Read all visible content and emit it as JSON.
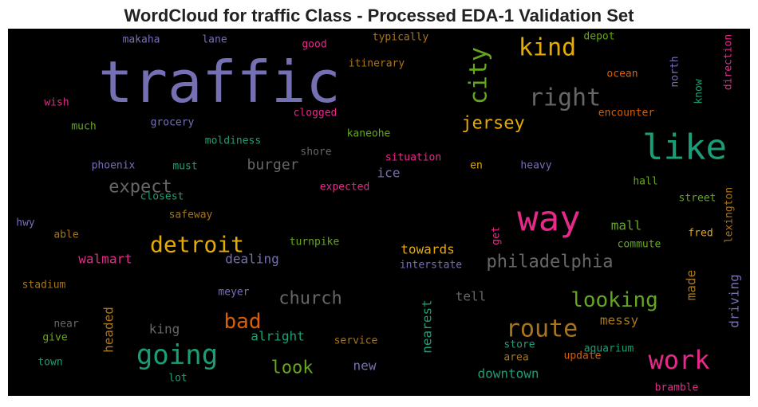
{
  "chart_data": {
    "type": "wordcloud",
    "title": "WordCloud for traffic Class - Processed EDA-1 Validation Set",
    "background": "#000000",
    "words": [
      {
        "text": "traffic",
        "color": "#7570b3"
      },
      {
        "text": "like",
        "color": "#1b9e77"
      },
      {
        "text": "way",
        "color": "#e7298a"
      },
      {
        "text": "kind",
        "color": "#e6ab02"
      },
      {
        "text": "right",
        "color": "#666666"
      },
      {
        "text": "city",
        "color": "#66a61e"
      },
      {
        "text": "jersey",
        "color": "#e6ab02"
      },
      {
        "text": "detroit",
        "color": "#e6ab02"
      },
      {
        "text": "going",
        "color": "#1b9e77"
      },
      {
        "text": "work",
        "color": "#e7298a"
      },
      {
        "text": "route",
        "color": "#a6761d"
      },
      {
        "text": "looking",
        "color": "#66a61e"
      },
      {
        "text": "philadelphia",
        "color": "#666666"
      },
      {
        "text": "church",
        "color": "#666666"
      },
      {
        "text": "bad",
        "color": "#d95f02"
      },
      {
        "text": "expect",
        "color": "#666666"
      },
      {
        "text": "burger",
        "color": "#666666"
      },
      {
        "text": "look",
        "color": "#66a61e"
      },
      {
        "text": "downtown",
        "color": "#1b9e77"
      },
      {
        "text": "towards",
        "color": "#e6ab02"
      },
      {
        "text": "walmart",
        "color": "#e7298a"
      },
      {
        "text": "dealing",
        "color": "#7570b3"
      },
      {
        "text": "mall",
        "color": "#66a61e"
      },
      {
        "text": "messy",
        "color": "#a6761d"
      },
      {
        "text": "alright",
        "color": "#1b9e77"
      },
      {
        "text": "king",
        "color": "#666666"
      },
      {
        "text": "headed",
        "color": "#a6761d"
      },
      {
        "text": "nearest",
        "color": "#1b9e77"
      },
      {
        "text": "made",
        "color": "#a6761d"
      },
      {
        "text": "driving",
        "color": "#7570b3"
      },
      {
        "text": "tell",
        "color": "#666666"
      },
      {
        "text": "new",
        "color": "#7570b3"
      },
      {
        "text": "ice",
        "color": "#7570b3"
      },
      {
        "text": "makaha",
        "color": "#7570b3"
      },
      {
        "text": "lane",
        "color": "#7570b3"
      },
      {
        "text": "good",
        "color": "#e7298a"
      },
      {
        "text": "typically",
        "color": "#a6761d"
      },
      {
        "text": "itinerary",
        "color": "#a6761d"
      },
      {
        "text": "depot",
        "color": "#66a61e"
      },
      {
        "text": "ocean",
        "color": "#d95f02"
      },
      {
        "text": "north",
        "color": "#7570b3"
      },
      {
        "text": "know",
        "color": "#1b9e77"
      },
      {
        "text": "direction",
        "color": "#e7298a"
      },
      {
        "text": "wish",
        "color": "#e7298a"
      },
      {
        "text": "much",
        "color": "#66a61e"
      },
      {
        "text": "grocery",
        "color": "#7570b3"
      },
      {
        "text": "clogged",
        "color": "#e7298a"
      },
      {
        "text": "encounter",
        "color": "#d95f02"
      },
      {
        "text": "kaneohe",
        "color": "#66a61e"
      },
      {
        "text": "moldiness",
        "color": "#1b9e77"
      },
      {
        "text": "shore",
        "color": "#666666"
      },
      {
        "text": "situation",
        "color": "#e7298a"
      },
      {
        "text": "en",
        "color": "#e6ab02"
      },
      {
        "text": "heavy",
        "color": "#7570b3"
      },
      {
        "text": "phoenix",
        "color": "#7570b3"
      },
      {
        "text": "must",
        "color": "#1b9e77"
      },
      {
        "text": "expected",
        "color": "#e7298a"
      },
      {
        "text": "closest",
        "color": "#1b9e77"
      },
      {
        "text": "hall",
        "color": "#66a61e"
      },
      {
        "text": "street",
        "color": "#66a61e"
      },
      {
        "text": "safeway",
        "color": "#a6761d"
      },
      {
        "text": "hwy",
        "color": "#7570b3"
      },
      {
        "text": "able",
        "color": "#a6761d"
      },
      {
        "text": "get",
        "color": "#e7298a"
      },
      {
        "text": "commute",
        "color": "#66a61e"
      },
      {
        "text": "fred",
        "color": "#e6ab02"
      },
      {
        "text": "lexington",
        "color": "#a6761d"
      },
      {
        "text": "turnpike",
        "color": "#66a61e"
      },
      {
        "text": "interstate",
        "color": "#7570b3"
      },
      {
        "text": "stadium",
        "color": "#a6761d"
      },
      {
        "text": "meyer",
        "color": "#7570b3"
      },
      {
        "text": "near",
        "color": "#666666"
      },
      {
        "text": "give",
        "color": "#66a61e"
      },
      {
        "text": "service",
        "color": "#a6761d"
      },
      {
        "text": "store",
        "color": "#1b9e77"
      },
      {
        "text": "aquarium",
        "color": "#1b9e77"
      },
      {
        "text": "area",
        "color": "#a6761d"
      },
      {
        "text": "update",
        "color": "#d95f02"
      },
      {
        "text": "town",
        "color": "#1b9e77"
      },
      {
        "text": "lot",
        "color": "#1b9e77"
      },
      {
        "text": "bramble",
        "color": "#e7298a"
      }
    ]
  }
}
